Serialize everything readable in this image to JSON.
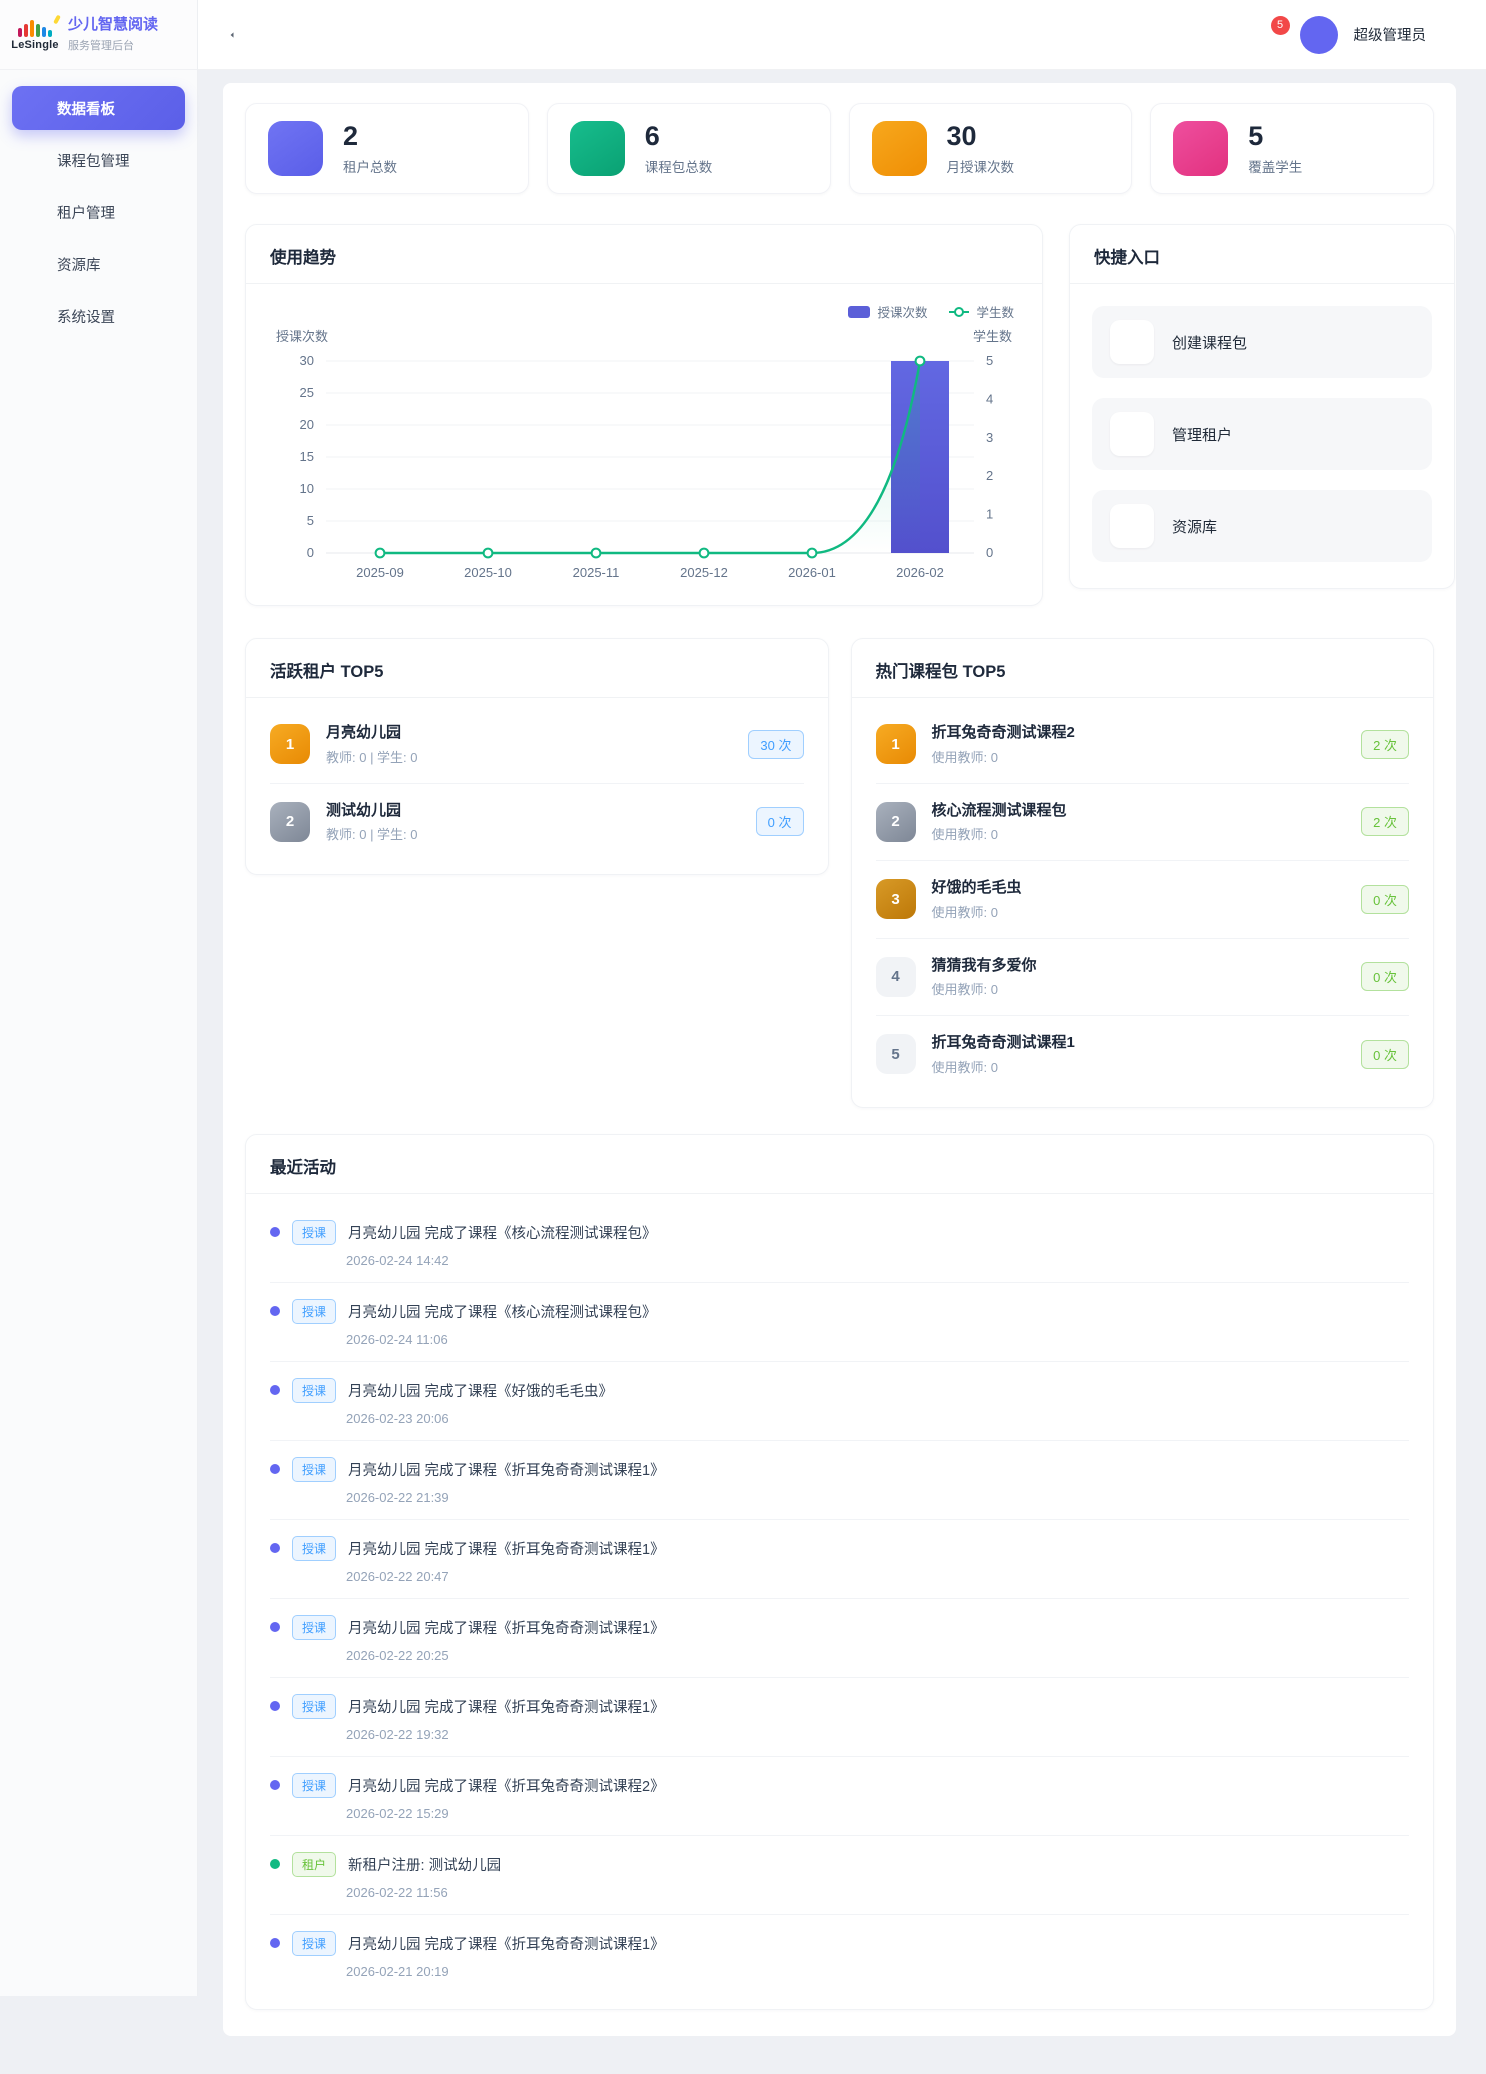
{
  "brand": {
    "logo_text": "LeSingle",
    "title": "少儿智慧阅读",
    "subtitle": "服务管理后台"
  },
  "sidebar": {
    "items": [
      {
        "label": "数据看板",
        "icon": "dashboard-icon",
        "active": true
      },
      {
        "label": "课程包管理",
        "icon": "book-icon",
        "active": false
      },
      {
        "label": "租户管理",
        "icon": "building-icon",
        "active": false
      },
      {
        "label": "资源库",
        "icon": "folder-icon",
        "active": false
      },
      {
        "label": "系统设置",
        "icon": "gear-icon",
        "active": false
      }
    ]
  },
  "header": {
    "notification_count": "5",
    "user_name": "超级管理员"
  },
  "stats": [
    {
      "value": "2",
      "label": "租户总数",
      "icon": "building-icon",
      "color": "#6366f1",
      "gradient": "linear-gradient(145deg,#7074f3,#5a5ee8)"
    },
    {
      "value": "6",
      "label": "课程包总数",
      "icon": "book-icon",
      "color": "#10b981",
      "gradient": "linear-gradient(145deg,#17bd8d,#0aa173)"
    },
    {
      "value": "30",
      "label": "月授课次数",
      "icon": "play-circle-icon",
      "color": "#f59e0b",
      "gradient": "linear-gradient(145deg,#f7a81d,#ef8e04)"
    },
    {
      "value": "5",
      "label": "覆盖学生",
      "icon": "users-icon",
      "color": "#ec4899",
      "gradient": "linear-gradient(145deg,#ee4f9e,#e2317f)"
    }
  ],
  "trend": {
    "title": "使用趋势"
  },
  "chart_data": {
    "type": "bar+line",
    "categories": [
      "2025-09",
      "2025-10",
      "2025-11",
      "2025-12",
      "2026-01",
      "2026-02"
    ],
    "series": [
      {
        "name": "授课次数",
        "type": "bar",
        "axis": "left",
        "color": "#5b5fd8",
        "values": [
          0,
          0,
          0,
          0,
          0,
          30
        ]
      },
      {
        "name": "学生数",
        "type": "line",
        "axis": "right",
        "color": "#10b981",
        "values": [
          0,
          0,
          0,
          0,
          0,
          5
        ]
      }
    ],
    "left_axis": {
      "label": "授课次数",
      "ticks": [
        0,
        5,
        10,
        15,
        20,
        25,
        30
      ],
      "max": 30
    },
    "right_axis": {
      "label": "学生数",
      "ticks": [
        0,
        1,
        2,
        3,
        4,
        5
      ],
      "max": 5
    },
    "legend": [
      "授课次数",
      "学生数"
    ],
    "legend_position": "top-right",
    "grid": true
  },
  "quick": {
    "title": "快捷入口",
    "items": [
      {
        "label": "创建课程包",
        "icon": "plus-icon"
      },
      {
        "label": "管理租户",
        "icon": "building-icon"
      },
      {
        "label": "资源库",
        "icon": "folder-icon"
      }
    ]
  },
  "active_tenants": {
    "title": "活跃租户 TOP5",
    "items": [
      {
        "rank": "1",
        "name": "月亮幼儿园",
        "meta": "教师: 0 | 学生: 0",
        "count": "30 次"
      },
      {
        "rank": "2",
        "name": "测试幼儿园",
        "meta": "教师: 0 | 学生: 0",
        "count": "0 次"
      }
    ]
  },
  "hot_packages": {
    "title": "热门课程包 TOP5",
    "items": [
      {
        "rank": "1",
        "name": "折耳兔奇奇测试课程2",
        "meta": "使用教师: 0",
        "count": "2 次"
      },
      {
        "rank": "2",
        "name": "核心流程测试课程包",
        "meta": "使用教师: 0",
        "count": "2 次"
      },
      {
        "rank": "3",
        "name": "好饿的毛毛虫",
        "meta": "使用教师: 0",
        "count": "0 次"
      },
      {
        "rank": "4",
        "name": "猜猜我有多爱你",
        "meta": "使用教师: 0",
        "count": "0 次"
      },
      {
        "rank": "5",
        "name": "折耳兔奇奇测试课程1",
        "meta": "使用教师: 0",
        "count": "0 次"
      }
    ]
  },
  "activities": {
    "title": "最近活动",
    "items": [
      {
        "type": "teach",
        "badge": "授课",
        "text": "月亮幼儿园 完成了课程《核心流程测试课程包》",
        "time": "2026-02-24 14:42"
      },
      {
        "type": "teach",
        "badge": "授课",
        "text": "月亮幼儿园 完成了课程《核心流程测试课程包》",
        "time": "2026-02-24 11:06"
      },
      {
        "type": "teach",
        "badge": "授课",
        "text": "月亮幼儿园 完成了课程《好饿的毛毛虫》",
        "time": "2026-02-23 20:06"
      },
      {
        "type": "teach",
        "badge": "授课",
        "text": "月亮幼儿园 完成了课程《折耳兔奇奇测试课程1》",
        "time": "2026-02-22 21:39"
      },
      {
        "type": "teach",
        "badge": "授课",
        "text": "月亮幼儿园 完成了课程《折耳兔奇奇测试课程1》",
        "time": "2026-02-22 20:47"
      },
      {
        "type": "teach",
        "badge": "授课",
        "text": "月亮幼儿园 完成了课程《折耳兔奇奇测试课程1》",
        "time": "2026-02-22 20:25"
      },
      {
        "type": "teach",
        "badge": "授课",
        "text": "月亮幼儿园 完成了课程《折耳兔奇奇测试课程1》",
        "time": "2026-02-22 19:32"
      },
      {
        "type": "teach",
        "badge": "授课",
        "text": "月亮幼儿园 完成了课程《折耳兔奇奇测试课程2》",
        "time": "2026-02-22 15:29"
      },
      {
        "type": "tenant",
        "badge": "租户",
        "text": "新租户注册: 测试幼儿园",
        "time": "2026-02-22 11:56"
      },
      {
        "type": "teach",
        "badge": "授课",
        "text": "月亮幼儿园 完成了课程《折耳兔奇奇测试课程1》",
        "time": "2026-02-21 20:19"
      }
    ]
  },
  "colors": {
    "primary": "#6366f1",
    "bar": "#5b5fd8",
    "line": "#10b981",
    "badge_blue": "#409eff",
    "badge_green": "#67c23a",
    "notification": "#f24848"
  }
}
